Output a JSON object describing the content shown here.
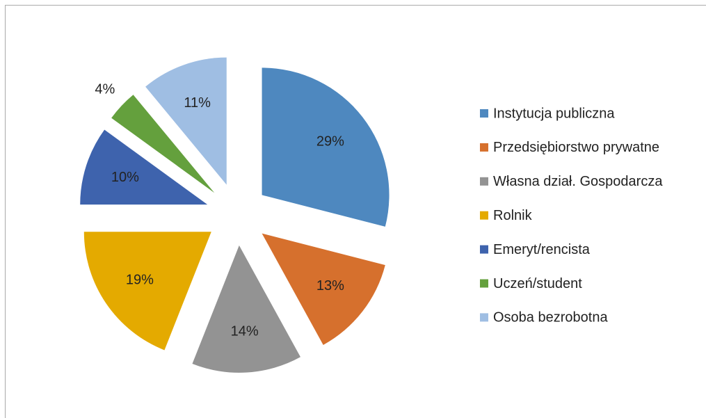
{
  "chart_data": {
    "type": "pie",
    "categories": [
      "Instytucja publiczna",
      "Przedsiębiorstwo prywatne",
      "Własna dział. Gospodarcza",
      "Rolnik",
      "Emeryt/rencista",
      "Uczeń/student",
      "Osoba bezrobotna"
    ],
    "values": [
      29,
      13,
      14,
      19,
      10,
      4,
      11
    ],
    "value_labels": [
      "29%",
      "13%",
      "14%",
      "19%",
      "10%",
      "4%",
      "11%"
    ],
    "colors": [
      "#4e88bf",
      "#d6702d",
      "#939393",
      "#e4aa00",
      "#3e63ad",
      "#64a03d",
      "#9fbee3"
    ],
    "legend": "right"
  }
}
